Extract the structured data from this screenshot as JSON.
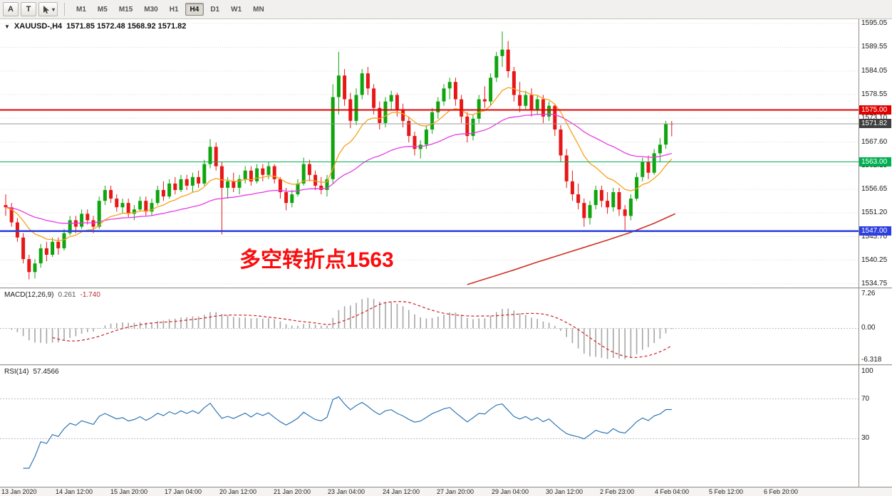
{
  "toolbar": {
    "buttons": [
      {
        "label": "A"
      },
      {
        "label": "T"
      }
    ],
    "timeframes": [
      "M1",
      "M5",
      "M15",
      "M30",
      "H1",
      "H4",
      "D1",
      "W1",
      "MN"
    ],
    "active_timeframe": "H4"
  },
  "chart": {
    "title": {
      "symbol": "XAUUSD-,H4",
      "ohlc": "1571.85 1572.48 1568.92 1571.82"
    },
    "annotation": {
      "text": "多空转折点1563",
      "color": "#fb0d0d"
    },
    "price_axis": [
      1595.05,
      1589.55,
      1584.05,
      1578.55,
      1573.1,
      1567.6,
      1562.15,
      1556.65,
      1551.2,
      1545.7,
      1540.25,
      1534.75
    ],
    "hlines": [
      {
        "price": 1575.0,
        "label": "1575.00",
        "color": "#e00000",
        "width": 2
      },
      {
        "price": 1563.0,
        "label": "1563.00",
        "color": "#00b050",
        "width": 1.4
      },
      {
        "price": 1547.0,
        "label": "1547.00",
        "color": "#2d3fe0",
        "width": 2.4
      }
    ],
    "current_price": {
      "value": 1571.82,
      "label": "1571.82",
      "line_color": "#9a9a9a",
      "tag_color": "#3f3f3f"
    },
    "colors": {
      "up": "#0fa50f",
      "down": "#e81717",
      "ma_fast": "#f6a21d",
      "ma_mid": "#e53ce5",
      "ma_slow": "#cc3322",
      "grid": "#dcdcdc"
    }
  },
  "chart_data": {
    "type": "candlestick",
    "symbol": "XAUUSD",
    "timeframe": "H4",
    "title": "XAUUSD-,H4 1571.85 1572.48 1568.92 1571.82",
    "price_range": {
      "top": 1595.05,
      "bottom": 1534.75
    },
    "x_labels": [
      "13 Jan 2020",
      "14 Jan 12:00",
      "15 Jan 20:00",
      "17 Jan 04:00",
      "20 Jan 12:00",
      "21 Jan 20:00",
      "23 Jan 04:00",
      "24 Jan 12:00",
      "27 Jan 20:00",
      "29 Jan 04:00",
      "30 Jan 12:00",
      "2 Feb 23:00",
      "4 Feb 04:00",
      "5 Feb 12:00",
      "6 Feb 20:00"
    ],
    "candles": [
      [
        1553.0,
        1555.5,
        1550.5,
        1552.5
      ],
      [
        1552.5,
        1553.5,
        1548.0,
        1549.0
      ],
      [
        1549.0,
        1550.0,
        1544.5,
        1545.5
      ],
      [
        1545.5,
        1546.5,
        1539.5,
        1540.5
      ],
      [
        1540.5,
        1541.5,
        1535.8,
        1537.5
      ],
      [
        1537.5,
        1540.5,
        1536.0,
        1539.5
      ],
      [
        1539.5,
        1544.0,
        1538.5,
        1543.0
      ],
      [
        1543.0,
        1544.5,
        1540.0,
        1541.5
      ],
      [
        1541.5,
        1545.5,
        1541.0,
        1544.5
      ],
      [
        1544.5,
        1545.5,
        1541.5,
        1543.0
      ],
      [
        1543.0,
        1547.5,
        1542.5,
        1546.5
      ],
      [
        1546.5,
        1550.5,
        1546.0,
        1549.5
      ],
      [
        1549.5,
        1550.5,
        1546.5,
        1548.0
      ],
      [
        1548.0,
        1552.0,
        1547.5,
        1551.0
      ],
      [
        1551.0,
        1552.0,
        1548.5,
        1549.5
      ],
      [
        1549.5,
        1550.5,
        1546.5,
        1548.0
      ],
      [
        1548.0,
        1555.0,
        1547.5,
        1554.0
      ],
      [
        1554.0,
        1557.5,
        1553.0,
        1556.5
      ],
      [
        1556.5,
        1557.5,
        1553.5,
        1554.5
      ],
      [
        1554.5,
        1555.5,
        1551.5,
        1552.5
      ],
      [
        1552.5,
        1554.5,
        1551.0,
        1553.5
      ],
      [
        1553.5,
        1554.5,
        1550.0,
        1551.0
      ],
      [
        1551.0,
        1553.0,
        1549.5,
        1552.0
      ],
      [
        1552.0,
        1555.0,
        1551.5,
        1554.0
      ],
      [
        1554.0,
        1555.0,
        1550.5,
        1551.5
      ],
      [
        1551.5,
        1554.5,
        1550.5,
        1553.5
      ],
      [
        1553.5,
        1557.5,
        1553.0,
        1556.5
      ],
      [
        1556.5,
        1558.5,
        1554.0,
        1555.0
      ],
      [
        1555.0,
        1559.0,
        1554.5,
        1558.0
      ],
      [
        1558.0,
        1559.5,
        1555.5,
        1556.5
      ],
      [
        1556.5,
        1560.0,
        1556.0,
        1559.0
      ],
      [
        1559.0,
        1560.0,
        1556.5,
        1557.5
      ],
      [
        1557.5,
        1560.5,
        1556.0,
        1559.5
      ],
      [
        1559.5,
        1561.0,
        1557.0,
        1558.0
      ],
      [
        1558.0,
        1563.5,
        1557.5,
        1562.5
      ],
      [
        1562.5,
        1568.3,
        1561.5,
        1566.5
      ],
      [
        1566.5,
        1567.5,
        1561.0,
        1562.0
      ],
      [
        1562.0,
        1563.0,
        1546.2,
        1557.0
      ],
      [
        1557.0,
        1559.5,
        1554.5,
        1558.5
      ],
      [
        1558.5,
        1560.5,
        1556.0,
        1557.0
      ],
      [
        1557.0,
        1560.0,
        1555.5,
        1559.0
      ],
      [
        1559.0,
        1562.0,
        1558.0,
        1561.0
      ],
      [
        1561.0,
        1562.0,
        1557.5,
        1558.5
      ],
      [
        1558.5,
        1562.5,
        1558.0,
        1561.5
      ],
      [
        1561.5,
        1562.5,
        1558.5,
        1560.0
      ],
      [
        1560.0,
        1563.0,
        1559.0,
        1562.0
      ],
      [
        1562.0,
        1562.5,
        1558.0,
        1559.0
      ],
      [
        1559.0,
        1559.5,
        1554.5,
        1556.0
      ],
      [
        1556.0,
        1557.0,
        1551.8,
        1553.5
      ],
      [
        1553.5,
        1556.5,
        1552.5,
        1555.5
      ],
      [
        1555.5,
        1559.0,
        1555.0,
        1558.0
      ],
      [
        1558.0,
        1564.0,
        1557.5,
        1562.5
      ],
      [
        1562.5,
        1563.5,
        1558.5,
        1560.0
      ],
      [
        1560.0,
        1561.0,
        1556.5,
        1557.5
      ],
      [
        1557.5,
        1559.5,
        1555.5,
        1556.5
      ],
      [
        1556.5,
        1560.0,
        1555.0,
        1559.0
      ],
      [
        1559.0,
        1581.0,
        1558.0,
        1578.0
      ],
      [
        1578.0,
        1588.5,
        1574.0,
        1583.0
      ],
      [
        1583.0,
        1584.5,
        1576.0,
        1577.5
      ],
      [
        1577.5,
        1579.0,
        1570.8,
        1572.5
      ],
      [
        1572.5,
        1580.0,
        1571.5,
        1578.5
      ],
      [
        1578.5,
        1584.5,
        1577.5,
        1583.5
      ],
      [
        1583.5,
        1585.0,
        1578.5,
        1580.0
      ],
      [
        1580.0,
        1581.0,
        1574.0,
        1575.5
      ],
      [
        1575.5,
        1577.0,
        1570.5,
        1572.0
      ],
      [
        1572.0,
        1578.0,
        1571.0,
        1577.0
      ],
      [
        1577.0,
        1579.5,
        1575.0,
        1578.5
      ],
      [
        1578.5,
        1579.0,
        1573.5,
        1575.0
      ],
      [
        1575.0,
        1576.5,
        1571.0,
        1572.5
      ],
      [
        1572.5,
        1573.5,
        1567.5,
        1569.0
      ],
      [
        1569.0,
        1570.0,
        1564.5,
        1566.0
      ],
      [
        1566.0,
        1568.0,
        1563.8,
        1567.0
      ],
      [
        1567.0,
        1571.5,
        1566.0,
        1570.5
      ],
      [
        1570.5,
        1575.5,
        1569.5,
        1574.5
      ],
      [
        1574.5,
        1578.0,
        1573.0,
        1577.0
      ],
      [
        1577.0,
        1581.0,
        1576.0,
        1580.0
      ],
      [
        1580.0,
        1582.5,
        1577.5,
        1581.5
      ],
      [
        1581.5,
        1582.5,
        1576.0,
        1577.5
      ],
      [
        1577.5,
        1578.5,
        1572.0,
        1573.5
      ],
      [
        1573.5,
        1574.5,
        1567.5,
        1569.0
      ],
      [
        1569.0,
        1574.0,
        1568.0,
        1573.0
      ],
      [
        1573.0,
        1578.5,
        1572.0,
        1577.5
      ],
      [
        1577.5,
        1580.5,
        1575.5,
        1577.0
      ],
      [
        1577.0,
        1583.5,
        1576.0,
        1582.5
      ],
      [
        1582.5,
        1588.5,
        1581.5,
        1587.5
      ],
      [
        1587.5,
        1593.2,
        1585.0,
        1589.0
      ],
      [
        1589.0,
        1591.0,
        1582.5,
        1584.0
      ],
      [
        1584.0,
        1585.0,
        1577.0,
        1578.5
      ],
      [
        1578.5,
        1581.5,
        1574.5,
        1576.0
      ],
      [
        1576.0,
        1579.5,
        1575.0,
        1578.5
      ],
      [
        1578.5,
        1580.0,
        1573.5,
        1575.0
      ],
      [
        1575.0,
        1578.5,
        1574.0,
        1577.5
      ],
      [
        1577.5,
        1578.5,
        1572.0,
        1573.5
      ],
      [
        1573.5,
        1577.0,
        1572.5,
        1576.0
      ],
      [
        1576.0,
        1576.5,
        1569.0,
        1570.5
      ],
      [
        1570.5,
        1571.5,
        1563.0,
        1564.5
      ],
      [
        1564.5,
        1566.0,
        1557.0,
        1558.5
      ],
      [
        1558.5,
        1561.0,
        1554.0,
        1555.5
      ],
      [
        1555.5,
        1558.0,
        1552.0,
        1553.5
      ],
      [
        1553.5,
        1554.5,
        1548.0,
        1550.0
      ],
      [
        1550.0,
        1554.0,
        1548.5,
        1553.0
      ],
      [
        1553.0,
        1557.5,
        1552.0,
        1556.5
      ],
      [
        1556.5,
        1557.5,
        1552.5,
        1554.0
      ],
      [
        1554.0,
        1556.0,
        1551.0,
        1552.5
      ],
      [
        1552.5,
        1557.0,
        1551.5,
        1556.0
      ],
      [
        1556.0,
        1557.0,
        1550.5,
        1552.0
      ],
      [
        1552.0,
        1553.0,
        1547.2,
        1550.5
      ],
      [
        1550.5,
        1555.5,
        1549.5,
        1554.5
      ],
      [
        1554.5,
        1560.5,
        1554.0,
        1559.5
      ],
      [
        1559.5,
        1564.0,
        1558.5,
        1563.0
      ],
      [
        1563.0,
        1564.5,
        1559.0,
        1560.5
      ],
      [
        1560.5,
        1566.0,
        1560.0,
        1565.0
      ],
      [
        1565.0,
        1568.5,
        1563.0,
        1567.0
      ],
      [
        1567.0,
        1572.5,
        1566.0,
        1571.85
      ],
      [
        1571.85,
        1572.48,
        1568.92,
        1571.82
      ]
    ],
    "ma_slow_points": [
      [
        79,
        1534.6
      ],
      [
        83,
        1536.3
      ],
      [
        87,
        1538.0
      ],
      [
        91,
        1539.8
      ],
      [
        95,
        1541.5
      ],
      [
        99,
        1543.2
      ],
      [
        103,
        1544.9
      ],
      [
        107,
        1546.7
      ],
      [
        111,
        1548.8
      ],
      [
        114.6,
        1551.0
      ]
    ]
  },
  "macd": {
    "name": "MACD(12,26,9)",
    "value_main": "0.261",
    "value_signal": "-1.740",
    "axis": [
      "7.26",
      "0.00",
      "-6.318"
    ],
    "scale_max": 7.26,
    "scale_min": -6.318,
    "params": {
      "fast": 12,
      "slow": 26,
      "signal": 9
    },
    "colors": {
      "histogram": "#a6a6a6",
      "signal": "#cc2222"
    }
  },
  "rsi": {
    "name": "RSI(14)",
    "value": "57.4566",
    "period": 14,
    "levels": [
      70,
      30
    ],
    "axis": [
      "100",
      "70",
      "30"
    ],
    "color": "#2f76b5"
  }
}
